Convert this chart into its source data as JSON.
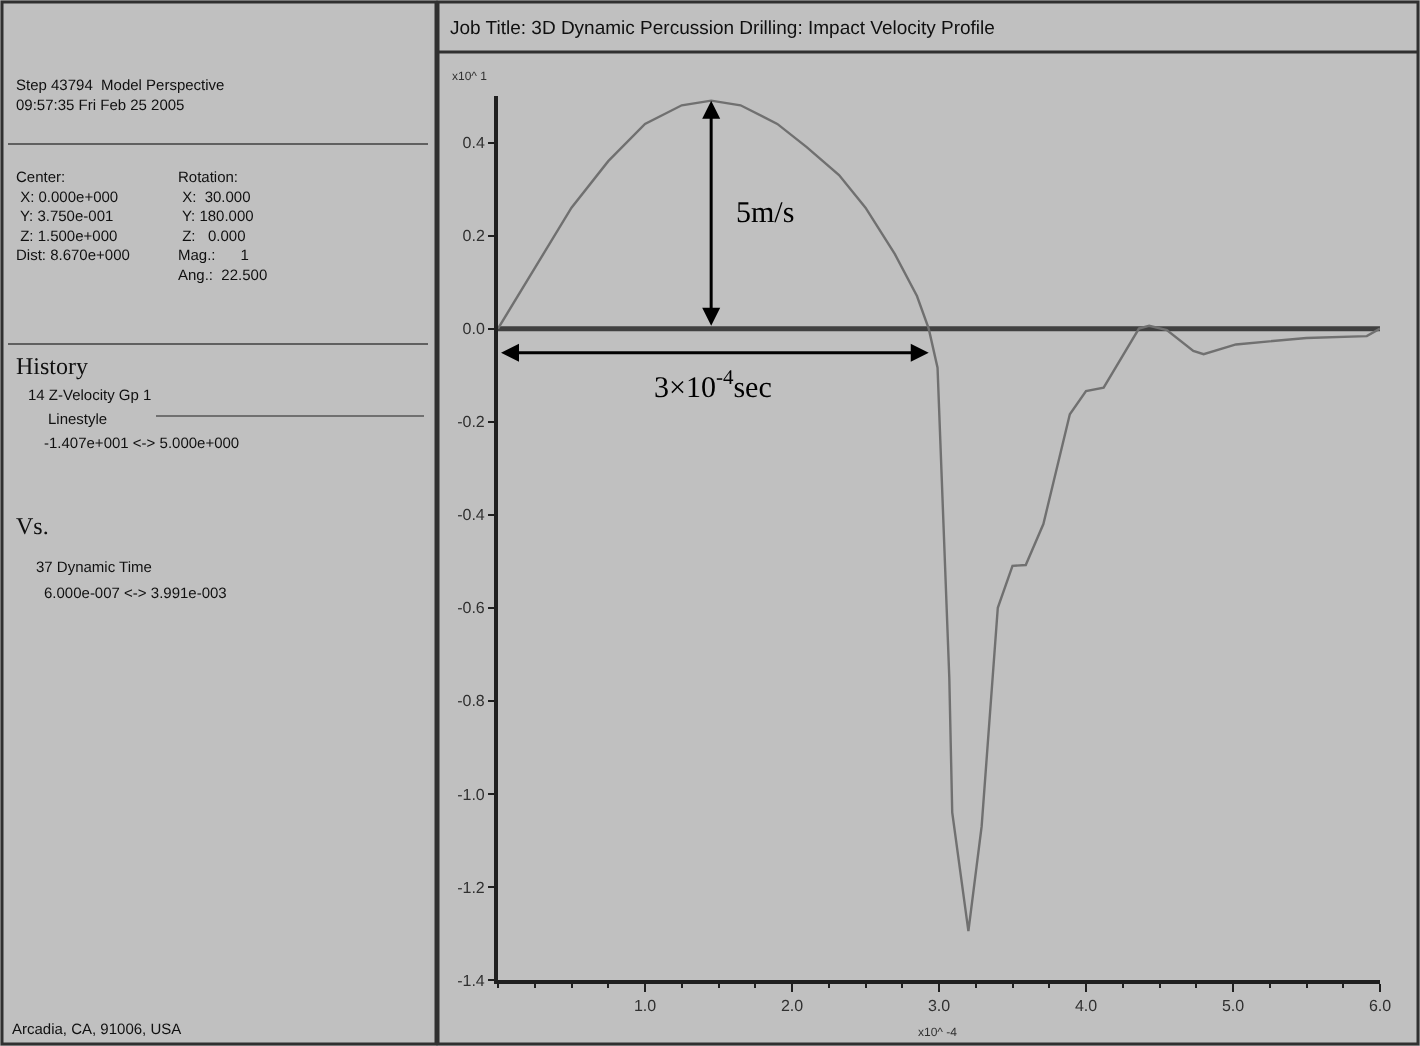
{
  "chart_data": {
    "type": "line",
    "title": "Job Title: 3D Dynamic Percussion Drilling: Impact Velocity Profile",
    "xlabel": "x10^ -4",
    "ylabel": "x10^ 1",
    "x": [
      0,
      0.25,
      0.5,
      0.75,
      1.0,
      1.25,
      1.45,
      1.65,
      1.9,
      2.1,
      2.32,
      2.5,
      2.7,
      2.85,
      2.93,
      2.99,
      3.07,
      3.09,
      3.2,
      3.29,
      3.4,
      3.5,
      3.59,
      3.71,
      3.89,
      4.0,
      4.12,
      4.36,
      4.43,
      4.55,
      4.73,
      4.8,
      5.02,
      5.5,
      5.91,
      6.0
    ],
    "series": [
      {
        "color": "#707070",
        "values": [
          0,
          0.13,
          0.26,
          0.36,
          0.44,
          0.48,
          0.49,
          0.48,
          0.44,
          0.39,
          0.33,
          0.26,
          0.16,
          0.07,
          0,
          -0.084,
          -0.75,
          -1.04,
          -1.295,
          -1.07,
          -0.6,
          -0.51,
          -0.508,
          -0.42,
          -0.184,
          -0.134,
          -0.127,
          0,
          0.006,
          -0.003,
          -0.048,
          -0.055,
          -0.034,
          -0.02,
          -0.016,
          0
        ]
      }
    ],
    "xlim": [
      0,
      6
    ],
    "ylim": [
      -1.4,
      0.5
    ],
    "xticks": [
      {
        "value": 1,
        "label": "1.0"
      },
      {
        "value": 2,
        "label": "2.0"
      },
      {
        "value": 3,
        "label": "3.0"
      },
      {
        "value": 4,
        "label": "4.0"
      },
      {
        "value": 5,
        "label": "5.0"
      },
      {
        "value": 6,
        "label": "6.0"
      }
    ],
    "yticks": [
      {
        "value": 0.4,
        "label": "0.4"
      },
      {
        "value": 0.2,
        "label": "0.2"
      },
      {
        "value": 0,
        "label": "0.0"
      },
      {
        "value": -0.2,
        "label": "-0.2"
      },
      {
        "value": -0.4,
        "label": "-0.4"
      },
      {
        "value": -0.6,
        "label": "-0.6"
      },
      {
        "value": -0.8,
        "label": "-0.8"
      },
      {
        "value": -1.0,
        "label": "-1.0"
      },
      {
        "value": -1.2,
        "label": "-1.2"
      },
      {
        "value": -1.4,
        "label": "-1.4"
      }
    ],
    "ref_lines": [
      {
        "axis": "y",
        "value": 0,
        "color": "#404040"
      }
    ],
    "annotations": [
      "5m/s",
      "3×10$^{-4}$sec",
      "Step 43794  Model Perspective\n09:57:35 Fri Feb 25 2005",
      "Center:\n X: 0.000e+000\n Y: 3.750e-001\n Z: 1.500e+000\nDist: 8.670e+000",
      "Rotation:\n X:  30.000\n Y: 180.000\n Z:   0.000\nMag.:      1\nAng.:  22.500",
      "History",
      "14 Z-Velocity Gp 1",
      "Linestyle",
      "-1.407e+001 <-> 5.000e+000",
      "Vs.",
      "37 Dynamic Time",
      "6.000e-007 <-> 3.991e-003",
      "Arcadia, CA, 91006, USA"
    ],
    "grid": false,
    "marker": "none",
    "line_style": "solid"
  }
}
